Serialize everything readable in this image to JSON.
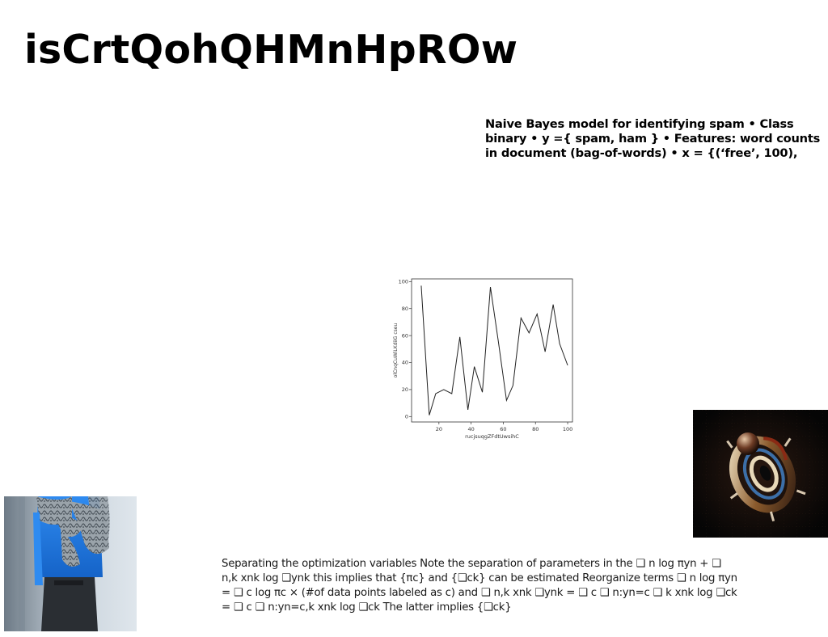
{
  "page": {
    "title": "isCrtQohQHMnHpROw",
    "summary_text": "Naive Bayes model for identifying spam • Class binary • y ={ spam, ham } • Features: word counts in document (bag-of-words) • x = {(‘free’, 100),",
    "body_text": "Separating the optimization variables Note the separation of parameters in the ❑ n log πyn + ❑ n,k xnk log ❑ynk this implies that {πc} and {❑ck} can be estimated Reorganize terms ❑ n log πyn = ❑ c log πc × (#of data points labeled as c) and ❑ n,k xnk ❑ynk = ❑ c ❑ n:yn=c ❑ k xnk log ❑ck = ❑ c ❑ n:yn=c,k xnk log ❑ck The latter implies {❑ck}"
  },
  "images": {
    "dark_photo": "abstract-metallic-sculpture",
    "person_photo": "tattooed-people-embracing"
  },
  "chart_data": {
    "type": "line",
    "xlabel": "rucjsuqgZFdtUwsihC",
    "ylabel": "olCnqCuWiLKdiiG cseu",
    "xlim": [
      3,
      103
    ],
    "ylim": [
      -4,
      102
    ],
    "xticks": [
      20,
      40,
      60,
      80,
      100
    ],
    "yticks": [
      0,
      20,
      40,
      60,
      80,
      100
    ],
    "line_color": "#222222",
    "grid": false,
    "series": [
      {
        "x": [
          9,
          14,
          18,
          23,
          28,
          33,
          38,
          42,
          47,
          52,
          57,
          62,
          66,
          71,
          76,
          81,
          86,
          91,
          95,
          100
        ],
        "values": [
          97,
          1,
          17,
          20,
          17,
          59,
          5,
          37,
          18,
          96,
          55,
          12,
          23,
          73,
          62,
          76,
          48,
          83,
          54,
          38
        ]
      }
    ]
  }
}
